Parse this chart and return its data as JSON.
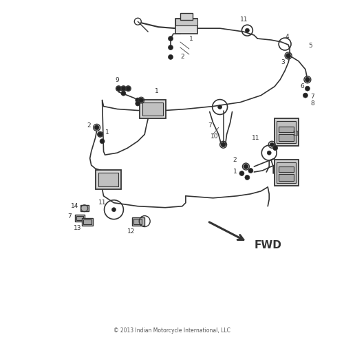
{
  "background_color": "#ffffff",
  "line_color": "#333333",
  "copyright_text": "© 2013 Indian Motorcycle International, LLC",
  "fwd_text": "FWD",
  "figsize": [
    5.0,
    5.0
  ],
  "dpi": 100
}
